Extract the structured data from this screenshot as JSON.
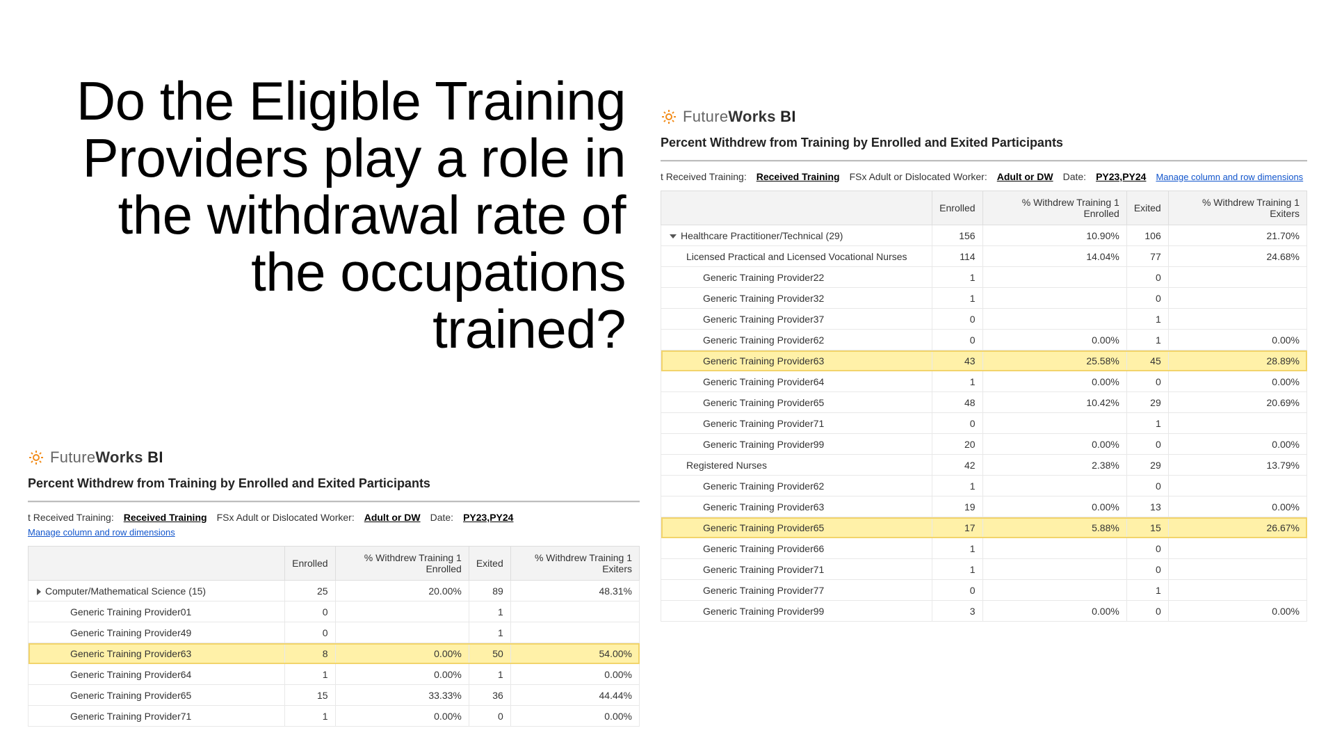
{
  "heading": "Do the Eligible Training Providers play a role in the withdrawal rate of the occupations trained?",
  "brand": {
    "part1": "Future",
    "part2": "Works",
    "part3": "BI"
  },
  "report_title": "Percent Withdrew from Training by Enrolled and Exited Participants",
  "filters": {
    "f1_label": "t Received Training:",
    "f1_value": "Received Training",
    "f2_label": "FSx Adult or Dislocated Worker:",
    "f2_value": "Adult or DW",
    "f3_label": "Date:",
    "f3_value": "PY23,PY24",
    "manage": "Manage column and row dimensions"
  },
  "columns": {
    "c0": "",
    "c1": "Enrolled",
    "c2": "% Withdrew Training 1 Enrolled",
    "c3": "Exited",
    "c4": "% Withdrew Training 1 Exiters"
  },
  "colors": {
    "highlight_bg": "#fff4c2",
    "highlight_border": "#f2d46b",
    "header_bg": "#f3f3f3",
    "border": "#e8e8e8",
    "text": "#333333",
    "link": "#1155cc",
    "brand_orange": "#f28c1a"
  },
  "left": {
    "rows": [
      {
        "level": "cat",
        "tri": "right",
        "name": "Computer/Mathematical Science (15)",
        "enrolled": "25",
        "pw_enr": "20.00%",
        "exited": "89",
        "pw_exit": "48.31%"
      },
      {
        "level": "leaf",
        "name": "Generic Training Provider01",
        "enrolled": "0",
        "pw_enr": "",
        "exited": "1",
        "pw_exit": ""
      },
      {
        "level": "leaf",
        "name": "Generic Training Provider49",
        "enrolled": "0",
        "pw_enr": "",
        "exited": "1",
        "pw_exit": ""
      },
      {
        "level": "leaf",
        "hl": true,
        "name": "Generic Training Provider63",
        "enrolled": "8",
        "pw_enr": "0.00%",
        "exited": "50",
        "pw_exit": "54.00%"
      },
      {
        "level": "leaf",
        "name": "Generic Training Provider64",
        "enrolled": "1",
        "pw_enr": "0.00%",
        "exited": "1",
        "pw_exit": "0.00%"
      },
      {
        "level": "leaf",
        "name": "Generic Training Provider65",
        "enrolled": "15",
        "pw_enr": "33.33%",
        "exited": "36",
        "pw_exit": "44.44%"
      },
      {
        "level": "leaf",
        "name": "Generic Training Provider71",
        "enrolled": "1",
        "pw_enr": "0.00%",
        "exited": "0",
        "pw_exit": "0.00%"
      }
    ]
  },
  "right": {
    "rows": [
      {
        "level": "cat",
        "tri": "down",
        "name": "Healthcare Practitioner/Technical (29)",
        "enrolled": "156",
        "pw_enr": "10.90%",
        "exited": "106",
        "pw_exit": "21.70%"
      },
      {
        "level": "sub",
        "name": "Licensed Practical and Licensed Vocational Nurses",
        "enrolled": "114",
        "pw_enr": "14.04%",
        "exited": "77",
        "pw_exit": "24.68%"
      },
      {
        "level": "leaf",
        "name": "Generic Training Provider22",
        "enrolled": "1",
        "pw_enr": "",
        "exited": "0",
        "pw_exit": ""
      },
      {
        "level": "leaf",
        "name": "Generic Training Provider32",
        "enrolled": "1",
        "pw_enr": "",
        "exited": "0",
        "pw_exit": ""
      },
      {
        "level": "leaf",
        "name": "Generic Training Provider37",
        "enrolled": "0",
        "pw_enr": "",
        "exited": "1",
        "pw_exit": ""
      },
      {
        "level": "leaf",
        "name": "Generic Training Provider62",
        "enrolled": "0",
        "pw_enr": "0.00%",
        "exited": "1",
        "pw_exit": "0.00%"
      },
      {
        "level": "leaf",
        "hl": true,
        "name": "Generic Training Provider63",
        "enrolled": "43",
        "pw_enr": "25.58%",
        "exited": "45",
        "pw_exit": "28.89%"
      },
      {
        "level": "leaf",
        "name": "Generic Training Provider64",
        "enrolled": "1",
        "pw_enr": "0.00%",
        "exited": "0",
        "pw_exit": "0.00%"
      },
      {
        "level": "leaf",
        "name": "Generic Training Provider65",
        "enrolled": "48",
        "pw_enr": "10.42%",
        "exited": "29",
        "pw_exit": "20.69%"
      },
      {
        "level": "leaf",
        "name": "Generic Training Provider71",
        "enrolled": "0",
        "pw_enr": "",
        "exited": "1",
        "pw_exit": ""
      },
      {
        "level": "leaf",
        "name": "Generic Training Provider99",
        "enrolled": "20",
        "pw_enr": "0.00%",
        "exited": "0",
        "pw_exit": "0.00%"
      },
      {
        "level": "sub",
        "name": "Registered Nurses",
        "enrolled": "42",
        "pw_enr": "2.38%",
        "exited": "29",
        "pw_exit": "13.79%"
      },
      {
        "level": "leaf",
        "name": "Generic Training Provider62",
        "enrolled": "1",
        "pw_enr": "",
        "exited": "0",
        "pw_exit": ""
      },
      {
        "level": "leaf",
        "name": "Generic Training Provider63",
        "enrolled": "19",
        "pw_enr": "0.00%",
        "exited": "13",
        "pw_exit": "0.00%"
      },
      {
        "level": "leaf",
        "hl": true,
        "name": "Generic Training Provider65",
        "enrolled": "17",
        "pw_enr": "5.88%",
        "exited": "15",
        "pw_exit": "26.67%"
      },
      {
        "level": "leaf",
        "name": "Generic Training Provider66",
        "enrolled": "1",
        "pw_enr": "",
        "exited": "0",
        "pw_exit": ""
      },
      {
        "level": "leaf",
        "name": "Generic Training Provider71",
        "enrolled": "1",
        "pw_enr": "",
        "exited": "0",
        "pw_exit": ""
      },
      {
        "level": "leaf",
        "name": "Generic Training Provider77",
        "enrolled": "0",
        "pw_enr": "",
        "exited": "1",
        "pw_exit": ""
      },
      {
        "level": "leaf",
        "name": "Generic Training Provider99",
        "enrolled": "3",
        "pw_enr": "0.00%",
        "exited": "0",
        "pw_exit": "0.00%"
      }
    ]
  }
}
